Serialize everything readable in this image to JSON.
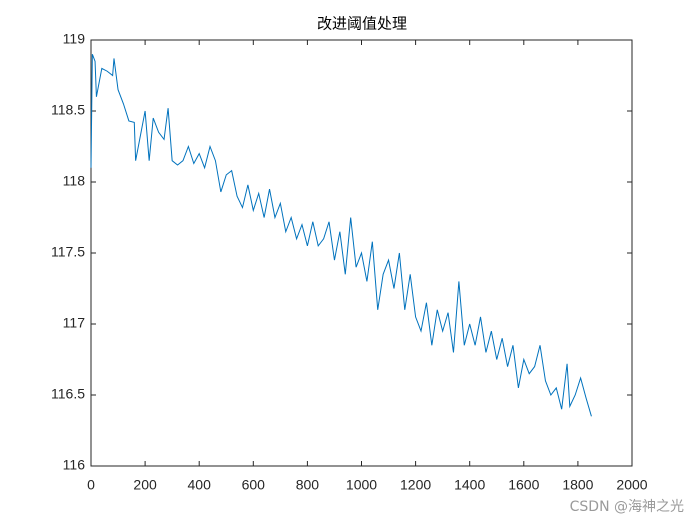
{
  "chart_data": {
    "type": "line",
    "title": "改进阈值处理",
    "x": [
      0,
      5,
      15,
      20,
      40,
      60,
      80,
      85,
      100,
      120,
      140,
      160,
      165,
      180,
      200,
      215,
      230,
      250,
      270,
      285,
      300,
      320,
      340,
      360,
      380,
      400,
      420,
      440,
      460,
      480,
      500,
      520,
      540,
      560,
      580,
      600,
      620,
      640,
      660,
      680,
      700,
      720,
      740,
      760,
      780,
      800,
      820,
      840,
      860,
      880,
      900,
      920,
      940,
      960,
      980,
      1000,
      1020,
      1040,
      1060,
      1080,
      1100,
      1120,
      1140,
      1160,
      1180,
      1200,
      1220,
      1240,
      1260,
      1280,
      1300,
      1320,
      1340,
      1360,
      1380,
      1400,
      1420,
      1440,
      1460,
      1480,
      1500,
      1520,
      1540,
      1560,
      1580,
      1600,
      1620,
      1640,
      1660,
      1680,
      1700,
      1720,
      1740,
      1760,
      1770,
      1790,
      1810,
      1830,
      1850
    ],
    "series": [
      {
        "color": "#0072bd",
        "values": [
          118.1,
          118.9,
          118.85,
          118.6,
          118.8,
          118.78,
          118.75,
          118.87,
          118.65,
          118.55,
          118.43,
          118.42,
          118.15,
          118.3,
          118.5,
          118.15,
          118.45,
          118.35,
          118.3,
          118.52,
          118.15,
          118.12,
          118.15,
          118.25,
          118.13,
          118.2,
          118.1,
          118.25,
          118.15,
          117.93,
          118.05,
          118.08,
          117.9,
          117.82,
          117.98,
          117.8,
          117.92,
          117.75,
          117.95,
          117.75,
          117.85,
          117.65,
          117.75,
          117.6,
          117.7,
          117.55,
          117.72,
          117.55,
          117.6,
          117.72,
          117.45,
          117.65,
          117.35,
          117.75,
          117.4,
          117.5,
          117.3,
          117.58,
          117.1,
          117.35,
          117.45,
          117.25,
          117.5,
          117.1,
          117.35,
          117.05,
          116.95,
          117.15,
          116.85,
          117.1,
          116.95,
          117.08,
          116.8,
          117.3,
          116.85,
          117.0,
          116.85,
          117.05,
          116.8,
          116.95,
          116.75,
          116.9,
          116.7,
          116.85,
          116.55,
          116.75,
          116.65,
          116.7,
          116.85,
          116.6,
          116.5,
          116.55,
          116.4,
          116.72,
          116.42,
          116.5,
          116.62,
          116.48,
          116.35
        ]
      }
    ],
    "xlim": [
      0,
      2000
    ],
    "xticks": [
      0,
      200,
      400,
      600,
      800,
      1000,
      1200,
      1400,
      1600,
      1800,
      2000
    ],
    "ylim": [
      116,
      119
    ],
    "yticks": [
      116,
      116.5,
      117,
      117.5,
      118,
      118.5,
      119
    ],
    "watermark": "CSDN @海神之光"
  }
}
